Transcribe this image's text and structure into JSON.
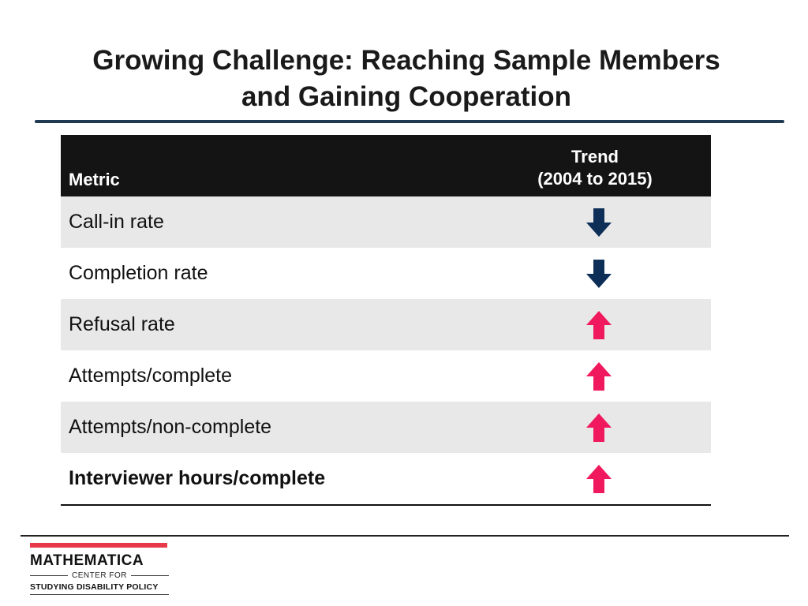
{
  "title": {
    "line1": "Growing Challenge: Reaching Sample Members",
    "line2": "and Gaining Cooperation"
  },
  "table": {
    "header_metric": "Metric",
    "header_trend_line1": "Trend",
    "header_trend_line2": "(2004 to 2015)",
    "rows": [
      {
        "metric": "Call-in rate",
        "trend": "down",
        "trend_icon": "arrow-down-icon"
      },
      {
        "metric": "Completion rate",
        "trend": "down",
        "trend_icon": "arrow-down-icon"
      },
      {
        "metric": "Refusal rate",
        "trend": "up",
        "trend_icon": "arrow-up-icon"
      },
      {
        "metric": "Attempts/complete",
        "trend": "up",
        "trend_icon": "arrow-up-icon"
      },
      {
        "metric": "Attempts/non-complete",
        "trend": "up",
        "trend_icon": "arrow-up-icon"
      },
      {
        "metric": "Interviewer hours/complete",
        "trend": "up",
        "trend_icon": "arrow-up-icon"
      }
    ]
  },
  "colors": {
    "down_arrow": "#0d2f57",
    "up_arrow": "#f0195e",
    "header_bg": "#141414",
    "logo_accent": "#e8394a"
  },
  "logo": {
    "name": "MATHEMATICA",
    "center": "CENTER FOR",
    "sub": "STUDYING DISABILITY POLICY"
  }
}
